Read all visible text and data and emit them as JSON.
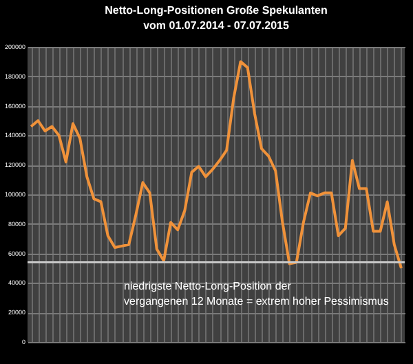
{
  "chart_data": {
    "type": "line",
    "title": "Netto-Long-Positionen  Große Spekulanten",
    "subtitle": "vom 01.07.2014 - 07.07.2015",
    "categories": [
      null,
      null,
      null,
      null,
      null,
      null,
      null,
      null,
      null,
      null,
      null,
      null,
      null,
      null,
      null,
      null,
      null,
      null,
      null,
      null,
      null,
      null,
      null,
      null,
      null,
      null,
      null,
      null,
      null,
      null,
      null,
      null,
      null,
      null,
      null,
      null,
      null,
      null,
      null,
      null,
      null,
      null,
      null,
      null,
      null,
      null,
      null,
      null,
      null,
      null,
      null,
      null,
      null,
      null
    ],
    "series": [
      {
        "color": "#f0923a",
        "values": [
          146000,
          150000,
          143000,
          146000,
          140000,
          122000,
          148000,
          138000,
          112000,
          97000,
          95000,
          72000,
          64000,
          65000,
          66000,
          86000,
          108000,
          101000,
          63000,
          55000,
          81000,
          76000,
          89000,
          115000,
          119000,
          112000,
          117000,
          123000,
          130000,
          165000,
          190000,
          186000,
          155000,
          131000,
          126000,
          116000,
          81000,
          53000,
          54000,
          81000,
          101000,
          99000,
          101000,
          101000,
          72000,
          77000,
          123000,
          104000,
          104000,
          75000,
          75000,
          95000,
          66000,
          50000
        ]
      }
    ],
    "ylim": [
      0,
      200000
    ],
    "yticks": [
      0,
      20000,
      40000,
      60000,
      80000,
      100000,
      120000,
      140000,
      160000,
      180000,
      200000
    ],
    "grid": true,
    "tick_labels": "y",
    "marker": "none",
    "line_style": "solid",
    "ref_lines": [
      {
        "axis": "y",
        "value": 54000,
        "label": "niedrigste Netto-Long-Position der\nvergangenen 12 Monate = extrem hoher Pessimismus",
        "color": "#c8c8c8"
      }
    ]
  }
}
